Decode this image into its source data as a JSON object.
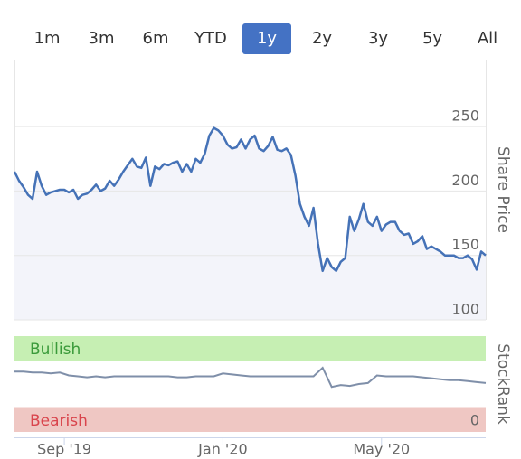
{
  "range_selector": {
    "buttons": [
      "1m",
      "3m",
      "6m",
      "YTD",
      "1y",
      "2y",
      "3y",
      "5y",
      "All"
    ],
    "selected": 4
  },
  "chart_data": [
    {
      "type": "line",
      "y_axis_label": "Share Price",
      "color": "#4572b7",
      "area_color": "#f3f4fa",
      "grid": true,
      "xlim": [
        0,
        104
      ],
      "xticks": [
        {
          "value": 11,
          "label": "Sep '19"
        },
        {
          "value": 46,
          "label": "Jan '20"
        },
        {
          "value": 81,
          "label": "May '20"
        }
      ],
      "ylim": [
        100,
        302
      ],
      "yticks": [
        100,
        150,
        200,
        250
      ],
      "values": [
        215,
        208,
        203,
        197,
        194,
        215,
        204,
        197,
        199,
        200,
        201,
        201,
        199,
        201,
        194,
        197,
        198,
        201,
        205,
        200,
        202,
        208,
        204,
        209,
        215,
        220,
        225,
        219,
        218,
        226,
        204,
        219,
        217,
        221,
        220,
        222,
        223,
        215,
        221,
        215,
        225,
        222,
        229,
        243,
        249,
        247,
        243,
        236,
        233,
        234,
        240,
        233,
        240,
        243,
        233,
        231,
        235,
        242,
        232,
        231,
        233,
        228,
        212,
        190,
        180,
        173,
        187,
        159,
        138,
        148,
        141,
        138,
        145,
        148,
        180,
        169,
        178,
        190,
        176,
        173,
        180,
        169,
        174,
        176,
        176,
        169,
        166,
        167,
        159,
        161,
        165,
        155,
        157,
        155,
        153,
        150,
        150,
        150,
        148,
        148,
        150,
        147,
        139,
        153,
        150
      ]
    },
    {
      "type": "line",
      "y_axis_label": "StockRank",
      "color": "#7f8fa9",
      "ylim": [
        0,
        100
      ],
      "yticks": [
        0
      ],
      "bands": [
        {
          "label": "Bullish",
          "range": [
            74,
            100
          ],
          "color": "#c6efb3",
          "text_color": "#3a9a3a"
        },
        {
          "label": "Bearish",
          "range": [
            0,
            25
          ],
          "color": "#efc7c3",
          "text_color": "#d9444c"
        }
      ],
      "values": [
        63,
        63,
        62,
        62,
        61,
        62,
        59,
        58,
        57,
        58,
        57,
        58,
        58,
        58,
        58,
        58,
        58,
        58,
        57,
        57,
        58,
        58,
        58,
        61,
        60,
        59,
        58,
        58,
        58,
        58,
        58,
        58,
        58,
        58,
        67,
        47,
        49,
        48,
        50,
        51,
        59,
        58,
        58,
        58,
        58,
        57,
        56,
        55,
        54,
        54,
        53,
        52,
        51
      ]
    }
  ]
}
